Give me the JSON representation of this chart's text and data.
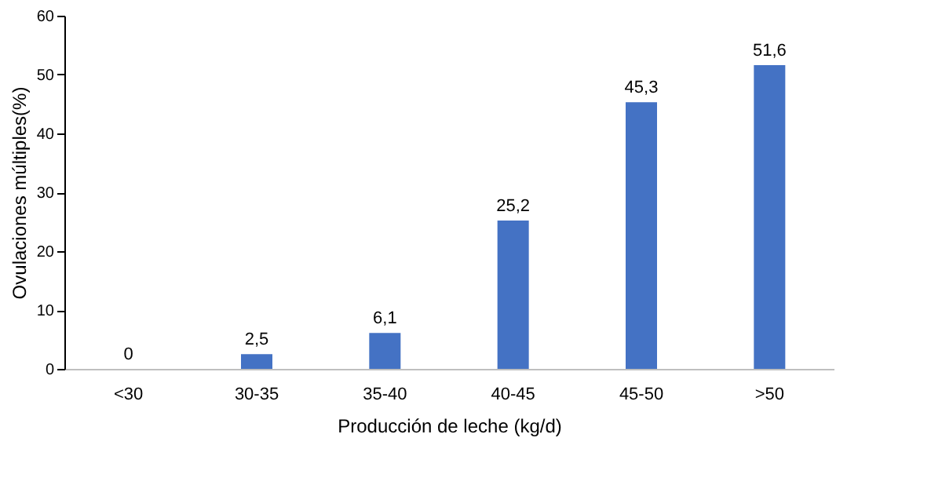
{
  "chart_data": {
    "type": "bar",
    "xlabel": "Producción de leche (kg/d)",
    "ylabel": "Ovulaciones múltiples(%)",
    "categories": [
      "<30",
      "30-35",
      "35-40",
      "40-45",
      "45-50",
      ">50"
    ],
    "values": [
      0,
      2.5,
      6.1,
      25.2,
      45.3,
      51.6
    ],
    "value_labels": [
      "0",
      "2,5",
      "6,1",
      "25,2",
      "45,3",
      "51,6"
    ],
    "color": "#4472c4",
    "ylim": [
      0,
      60
    ],
    "yticks": [
      0,
      10,
      20,
      30,
      40,
      50,
      60
    ],
    "grid": false
  }
}
